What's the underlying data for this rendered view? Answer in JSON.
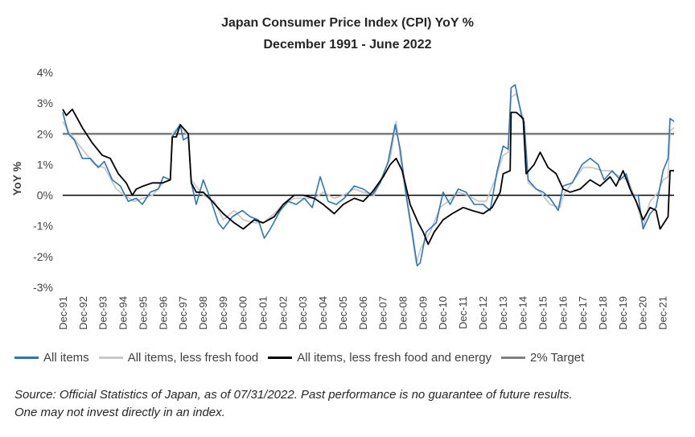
{
  "chart_data": {
    "type": "line",
    "title": "Japan Consumer Price Index (CPI) YoY %",
    "subtitle": "December 1991 - June 2022",
    "ylabel": "YoY %",
    "xlabel": "",
    "ylim": [
      -3,
      4
    ],
    "y_ticks": [
      "4%",
      "3%",
      "2%",
      "1%",
      "0%",
      "-1%",
      "-2%",
      "-3%"
    ],
    "x_ticks": [
      "Dec-91",
      "Dec-92",
      "Dec-93",
      "Dec-94",
      "Dec-95",
      "Dec-96",
      "Dec-97",
      "Dec-98",
      "Dec-99",
      "Dec-00",
      "Dec-01",
      "Dec-02",
      "Dec-03",
      "Dec-04",
      "Dec-05",
      "Dec-06",
      "Dec-07",
      "Dec-08",
      "Dec-09",
      "Dec-10",
      "Dec-11",
      "Dec-12",
      "Dec-13",
      "Dec-14",
      "Dec-15",
      "Dec-16",
      "Dec-17",
      "Dec-18",
      "Dec-19",
      "Dec-20",
      "Dec-21"
    ],
    "x_range": [
      1991.92,
      2022.5
    ],
    "series": [
      {
        "name": "All items",
        "color": "#2e75b6",
        "points": [
          [
            1991.92,
            2.7
          ],
          [
            1992.2,
            2.0
          ],
          [
            1992.5,
            1.8
          ],
          [
            1992.9,
            1.2
          ],
          [
            1993.3,
            1.2
          ],
          [
            1993.7,
            0.9
          ],
          [
            1994.0,
            1.1
          ],
          [
            1994.4,
            0.5
          ],
          [
            1994.8,
            0.3
          ],
          [
            1995.2,
            -0.2
          ],
          [
            1995.6,
            -0.1
          ],
          [
            1995.9,
            -0.3
          ],
          [
            1996.3,
            0.1
          ],
          [
            1996.7,
            0.2
          ],
          [
            1996.95,
            0.6
          ],
          [
            1997.3,
            0.5
          ],
          [
            1997.4,
            1.9
          ],
          [
            1997.6,
            2.1
          ],
          [
            1997.8,
            2.3
          ],
          [
            1997.95,
            1.8
          ],
          [
            1998.2,
            1.9
          ],
          [
            1998.35,
            0.4
          ],
          [
            1998.6,
            -0.3
          ],
          [
            1998.95,
            0.5
          ],
          [
            1999.3,
            -0.1
          ],
          [
            1999.7,
            -0.9
          ],
          [
            1999.95,
            -1.1
          ],
          [
            2000.4,
            -0.7
          ],
          [
            2000.9,
            -0.5
          ],
          [
            2001.3,
            -0.7
          ],
          [
            2001.7,
            -0.8
          ],
          [
            2002.0,
            -1.4
          ],
          [
            2002.3,
            -1.1
          ],
          [
            2002.8,
            -0.5
          ],
          [
            2003.2,
            -0.2
          ],
          [
            2003.6,
            -0.3
          ],
          [
            2004.0,
            -0.1
          ],
          [
            2004.4,
            -0.4
          ],
          [
            2004.8,
            0.6
          ],
          [
            2005.2,
            -0.2
          ],
          [
            2005.6,
            -0.3
          ],
          [
            2006.0,
            -0.1
          ],
          [
            2006.5,
            0.3
          ],
          [
            2006.95,
            0.2
          ],
          [
            2007.4,
            0.0
          ],
          [
            2007.8,
            0.4
          ],
          [
            2008.2,
            1.1
          ],
          [
            2008.55,
            2.3
          ],
          [
            2008.8,
            1.5
          ],
          [
            2009.1,
            0.0
          ],
          [
            2009.4,
            -1.2
          ],
          [
            2009.65,
            -2.3
          ],
          [
            2009.8,
            -2.2
          ],
          [
            2010.1,
            -1.2
          ],
          [
            2010.6,
            -0.9
          ],
          [
            2010.95,
            0.1
          ],
          [
            2011.3,
            -0.3
          ],
          [
            2011.7,
            0.2
          ],
          [
            2012.1,
            0.1
          ],
          [
            2012.5,
            -0.3
          ],
          [
            2012.95,
            -0.3
          ],
          [
            2013.3,
            -0.5
          ],
          [
            2013.65,
            0.8
          ],
          [
            2013.95,
            1.6
          ],
          [
            2014.2,
            1.5
          ],
          [
            2014.35,
            3.5
          ],
          [
            2014.55,
            3.6
          ],
          [
            2014.9,
            2.5
          ],
          [
            2015.0,
            2.4
          ],
          [
            2015.2,
            0.5
          ],
          [
            2015.6,
            0.2
          ],
          [
            2015.95,
            0.1
          ],
          [
            2016.3,
            -0.1
          ],
          [
            2016.7,
            -0.5
          ],
          [
            2016.95,
            0.3
          ],
          [
            2017.4,
            0.4
          ],
          [
            2017.9,
            1.0
          ],
          [
            2018.3,
            1.2
          ],
          [
            2018.7,
            1.0
          ],
          [
            2019.0,
            0.5
          ],
          [
            2019.4,
            0.8
          ],
          [
            2019.8,
            0.5
          ],
          [
            2020.1,
            0.7
          ],
          [
            2020.4,
            0.0
          ],
          [
            2020.7,
            0.0
          ],
          [
            2020.95,
            -1.1
          ],
          [
            2021.3,
            -0.6
          ],
          [
            2021.6,
            -0.4
          ],
          [
            2021.95,
            0.8
          ],
          [
            2022.2,
            1.2
          ],
          [
            2022.3,
            2.5
          ],
          [
            2022.5,
            2.4
          ]
        ]
      },
      {
        "name": "All items, less fresh food",
        "color": "#c8c8c8",
        "points": [
          [
            1991.92,
            2.4
          ],
          [
            1992.3,
            2.0
          ],
          [
            1992.9,
            1.5
          ],
          [
            1993.5,
            1.0
          ],
          [
            1994.0,
            0.9
          ],
          [
            1994.6,
            0.2
          ],
          [
            1995.0,
            0.0
          ],
          [
            1995.5,
            -0.2
          ],
          [
            1995.95,
            -0.1
          ],
          [
            1996.4,
            0.0
          ],
          [
            1996.95,
            0.4
          ],
          [
            1997.3,
            0.5
          ],
          [
            1997.4,
            2.0
          ],
          [
            1997.8,
            2.3
          ],
          [
            1998.2,
            1.9
          ],
          [
            1998.35,
            0.5
          ],
          [
            1998.95,
            0.0
          ],
          [
            1999.5,
            -0.2
          ],
          [
            1999.95,
            -0.8
          ],
          [
            2000.5,
            -0.5
          ],
          [
            2000.95,
            -0.8
          ],
          [
            2001.5,
            -0.9
          ],
          [
            2001.95,
            -0.9
          ],
          [
            2002.5,
            -0.6
          ],
          [
            2002.95,
            -0.3
          ],
          [
            2003.5,
            -0.1
          ],
          [
            2003.95,
            -0.1
          ],
          [
            2004.5,
            -0.1
          ],
          [
            2004.95,
            0.1
          ],
          [
            2005.5,
            -0.1
          ],
          [
            2005.95,
            0.0
          ],
          [
            2006.5,
            0.2
          ],
          [
            2006.95,
            0.1
          ],
          [
            2007.5,
            0.0
          ],
          [
            2007.95,
            0.7
          ],
          [
            2008.3,
            1.2
          ],
          [
            2008.6,
            2.4
          ],
          [
            2008.85,
            1.0
          ],
          [
            2009.2,
            -0.5
          ],
          [
            2009.6,
            -2.2
          ],
          [
            2009.85,
            -1.7
          ],
          [
            2010.3,
            -1.2
          ],
          [
            2010.8,
            -0.4
          ],
          [
            2011.2,
            -0.2
          ],
          [
            2011.7,
            0.1
          ],
          [
            2012.2,
            0.0
          ],
          [
            2012.7,
            -0.2
          ],
          [
            2013.1,
            -0.2
          ],
          [
            2013.6,
            0.6
          ],
          [
            2013.95,
            1.3
          ],
          [
            2014.2,
            1.4
          ],
          [
            2014.35,
            3.2
          ],
          [
            2014.6,
            3.3
          ],
          [
            2014.95,
            2.5
          ],
          [
            2015.2,
            0.4
          ],
          [
            2015.8,
            0.1
          ],
          [
            2016.3,
            -0.3
          ],
          [
            2016.8,
            -0.4
          ],
          [
            2016.95,
            0.0
          ],
          [
            2017.5,
            0.5
          ],
          [
            2017.95,
            0.9
          ],
          [
            2018.4,
            0.9
          ],
          [
            2018.9,
            0.8
          ],
          [
            2019.3,
            0.8
          ],
          [
            2019.8,
            0.6
          ],
          [
            2020.2,
            0.5
          ],
          [
            2020.6,
            -0.2
          ],
          [
            2020.95,
            -1.0
          ],
          [
            2021.3,
            -0.2
          ],
          [
            2021.7,
            0.1
          ],
          [
            2021.95,
            0.5
          ],
          [
            2022.2,
            0.6
          ],
          [
            2022.3,
            2.1
          ],
          [
            2022.5,
            2.2
          ]
        ]
      },
      {
        "name": "All items, less fresh food and energy",
        "color": "#000000",
        "points": [
          [
            1991.92,
            2.8
          ],
          [
            1992.1,
            2.6
          ],
          [
            1992.4,
            2.8
          ],
          [
            1992.9,
            2.2
          ],
          [
            1993.4,
            1.7
          ],
          [
            1993.9,
            1.3
          ],
          [
            1994.3,
            1.2
          ],
          [
            1994.7,
            0.7
          ],
          [
            1995.1,
            0.4
          ],
          [
            1995.4,
            0.0
          ],
          [
            1995.6,
            0.2
          ],
          [
            1995.95,
            0.3
          ],
          [
            1996.4,
            0.4
          ],
          [
            1996.9,
            0.4
          ],
          [
            1997.3,
            0.5
          ],
          [
            1997.4,
            1.9
          ],
          [
            1997.6,
            1.9
          ],
          [
            1997.8,
            2.3
          ],
          [
            1998.2,
            2.0
          ],
          [
            1998.35,
            0.4
          ],
          [
            1998.6,
            0.1
          ],
          [
            1998.95,
            0.1
          ],
          [
            1999.4,
            -0.2
          ],
          [
            1999.95,
            -0.6
          ],
          [
            2000.5,
            -0.9
          ],
          [
            2000.95,
            -1.1
          ],
          [
            2001.5,
            -0.8
          ],
          [
            2001.95,
            -0.9
          ],
          [
            2002.5,
            -0.7
          ],
          [
            2002.95,
            -0.3
          ],
          [
            2003.5,
            0.0
          ],
          [
            2003.95,
            0.0
          ],
          [
            2004.5,
            -0.1
          ],
          [
            2004.95,
            -0.3
          ],
          [
            2005.5,
            -0.6
          ],
          [
            2005.95,
            -0.3
          ],
          [
            2006.5,
            -0.1
          ],
          [
            2006.95,
            -0.2
          ],
          [
            2007.4,
            0.1
          ],
          [
            2007.95,
            0.6
          ],
          [
            2008.3,
            1.0
          ],
          [
            2008.6,
            1.2
          ],
          [
            2008.9,
            0.8
          ],
          [
            2009.3,
            -0.3
          ],
          [
            2009.7,
            -0.9
          ],
          [
            2009.95,
            -1.2
          ],
          [
            2010.2,
            -1.6
          ],
          [
            2010.5,
            -1.2
          ],
          [
            2010.95,
            -0.8
          ],
          [
            2011.4,
            -0.6
          ],
          [
            2011.95,
            -0.4
          ],
          [
            2012.4,
            -0.5
          ],
          [
            2012.95,
            -0.6
          ],
          [
            2013.4,
            -0.4
          ],
          [
            2013.8,
            0.1
          ],
          [
            2013.95,
            0.7
          ],
          [
            2014.3,
            0.8
          ],
          [
            2014.35,
            2.7
          ],
          [
            2014.6,
            2.7
          ],
          [
            2014.95,
            2.5
          ],
          [
            2015.1,
            0.7
          ],
          [
            2015.5,
            1.0
          ],
          [
            2015.8,
            1.4
          ],
          [
            2016.2,
            0.9
          ],
          [
            2016.6,
            0.7
          ],
          [
            2016.95,
            0.2
          ],
          [
            2017.3,
            0.1
          ],
          [
            2017.8,
            0.2
          ],
          [
            2018.3,
            0.5
          ],
          [
            2018.8,
            0.3
          ],
          [
            2019.3,
            0.6
          ],
          [
            2019.6,
            0.3
          ],
          [
            2019.95,
            0.8
          ],
          [
            2020.3,
            0.2
          ],
          [
            2020.6,
            -0.2
          ],
          [
            2020.95,
            -0.8
          ],
          [
            2021.3,
            -0.4
          ],
          [
            2021.6,
            -0.5
          ],
          [
            2021.8,
            -1.1
          ],
          [
            2022.0,
            -0.9
          ],
          [
            2022.2,
            -0.7
          ],
          [
            2022.3,
            0.8
          ],
          [
            2022.5,
            0.8
          ]
        ]
      },
      {
        "name": "2% Target",
        "color": "#808080",
        "points": [
          [
            1991.92,
            2.0
          ],
          [
            2022.5,
            2.0
          ]
        ]
      }
    ]
  },
  "source": {
    "line1": "Source: Official Statistics of Japan, as of 07/31/2022. Past performance is no guarantee of future results.",
    "line2": "One may not invest directly in an index."
  }
}
